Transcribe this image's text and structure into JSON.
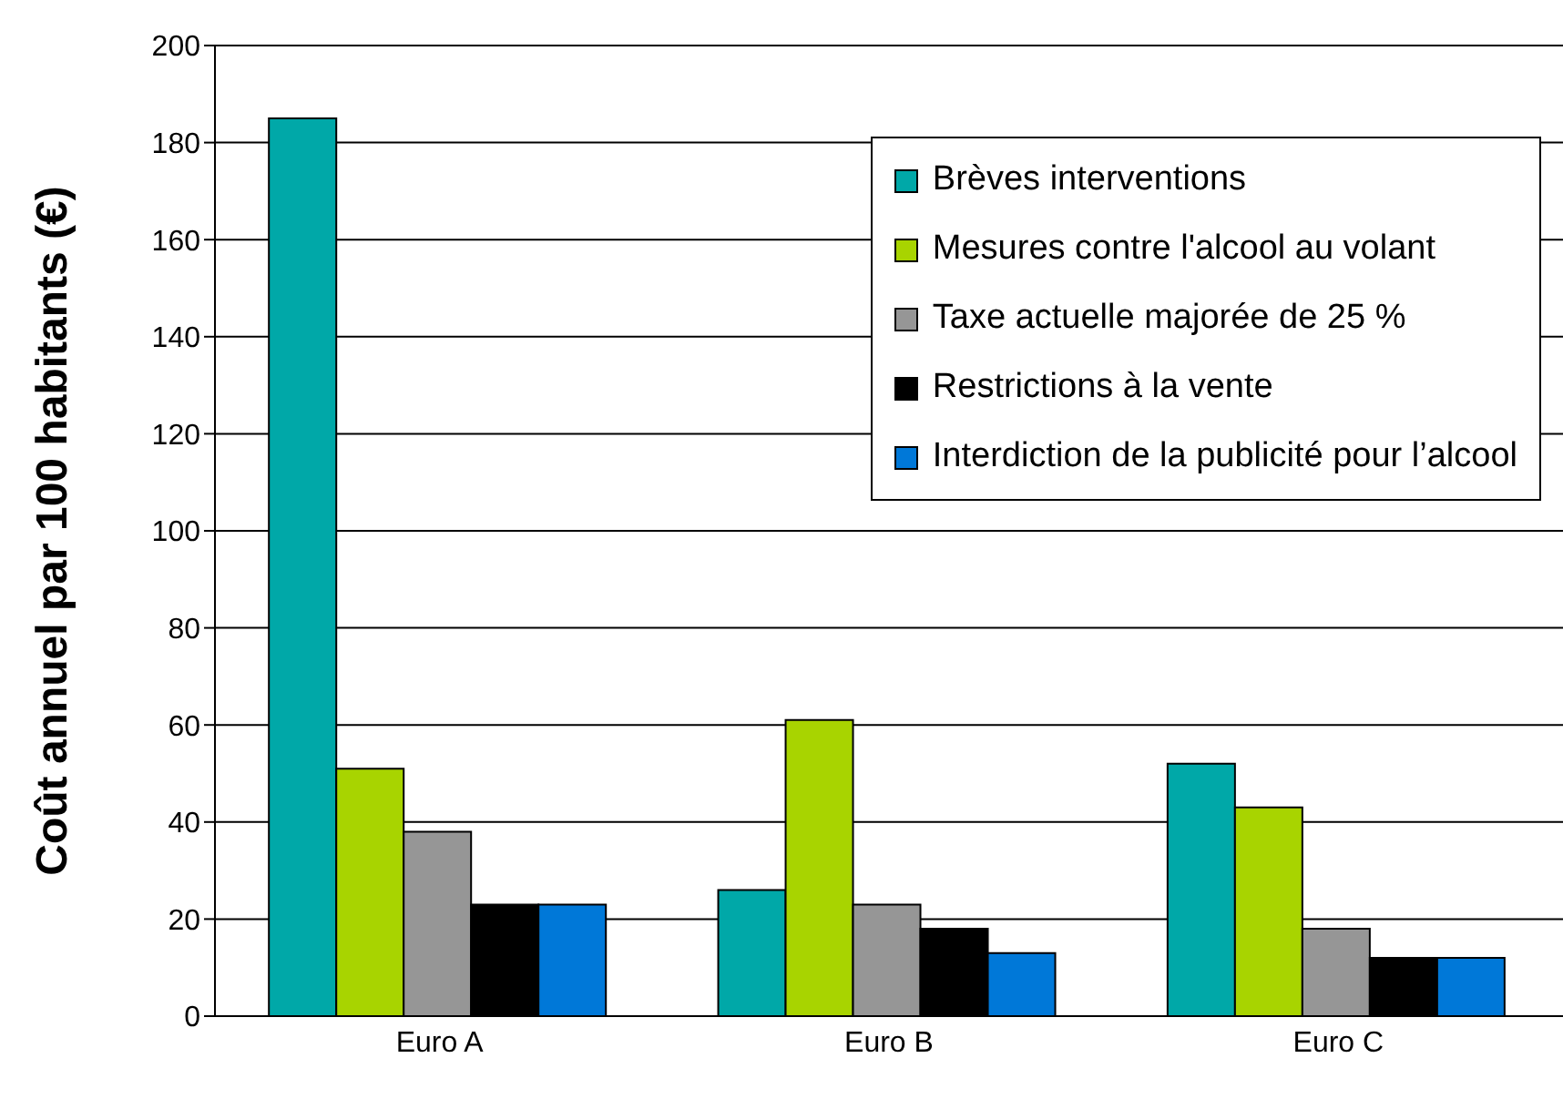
{
  "chart_data": {
    "type": "bar",
    "ylabel": "Coût annuel par 100 habitants (€)",
    "categories": [
      "Euro A",
      "Euro B",
      "Euro C"
    ],
    "series": [
      {
        "name": "Brèves interventions",
        "color": "#00a8a8",
        "values": [
          185,
          26,
          52
        ]
      },
      {
        "name": "Mesures contre l'alcool au volant",
        "color": "#a8d400",
        "values": [
          51,
          61,
          43
        ]
      },
      {
        "name": "Taxe actuelle majorée de 25 %",
        "color": "#969696",
        "values": [
          38,
          23,
          18
        ]
      },
      {
        "name": "Restrictions à la vente",
        "color": "#000000",
        "values": [
          23,
          18,
          12
        ]
      },
      {
        "name": "Interdiction de la publicité pour l’alcool",
        "color": "#0078d8",
        "values": [
          23,
          13,
          12
        ]
      }
    ],
    "ylim": [
      0,
      200
    ],
    "yticks": [
      0,
      20,
      40,
      60,
      80,
      100,
      120,
      140,
      160,
      180,
      200
    ],
    "grid": "y",
    "legend": "top right"
  }
}
